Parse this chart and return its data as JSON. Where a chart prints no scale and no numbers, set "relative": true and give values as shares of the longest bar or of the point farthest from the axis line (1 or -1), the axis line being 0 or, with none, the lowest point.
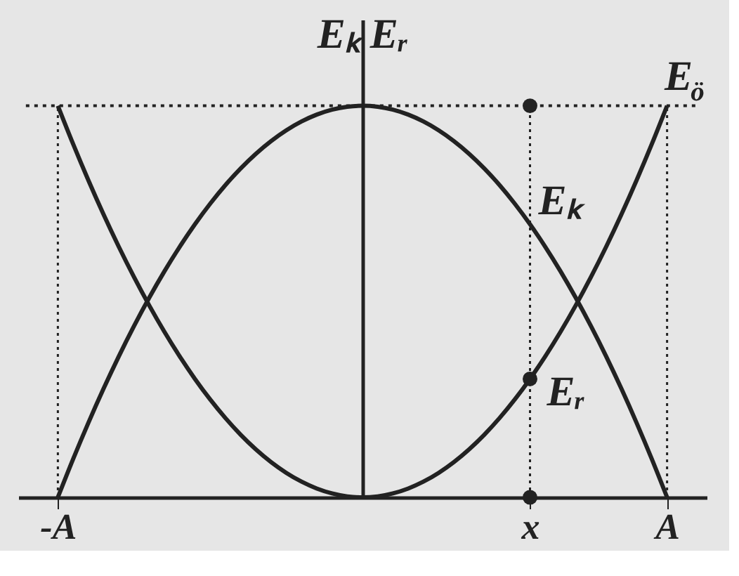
{
  "chart_data": {
    "type": "line",
    "relative": true,
    "ylabel": "Eₖ Eᵣ",
    "categories": [
      "-A",
      null,
      null,
      null,
      null,
      null,
      null,
      null,
      null,
      null,
      null,
      null,
      null,
      null,
      null,
      null,
      null,
      null,
      null,
      null,
      null,
      null,
      null,
      null,
      null,
      null,
      null,
      null,
      null,
      null,
      null,
      "x",
      null,
      null,
      null,
      null,
      null,
      null,
      null,
      null,
      "A"
    ],
    "series": [
      {
        "name": "Eₖ",
        "color": "#222222",
        "values": [
          0,
          0.0975,
          0.19,
          0.2775,
          0.36,
          0.4375,
          0.51,
          0.5775,
          0.64,
          0.6975,
          0.75,
          0.7975,
          0.84,
          0.8775,
          0.91,
          0.9375,
          0.96,
          0.9775,
          0.99,
          0.9975,
          1,
          0.9975,
          0.99,
          0.9775,
          0.96,
          0.9375,
          0.91,
          0.8775,
          0.84,
          0.7975,
          0.75,
          0.6975,
          0.64,
          0.5775,
          0.51,
          0.4375,
          0.36,
          0.2775,
          0.19,
          0.0975,
          0
        ]
      },
      {
        "name": "Eᵣ",
        "color": "#222222",
        "values": [
          1,
          0.9025,
          0.81,
          0.7225,
          0.64,
          0.5625,
          0.49,
          0.4225,
          0.36,
          0.3025,
          0.25,
          0.2025,
          0.16,
          0.1225,
          0.09,
          0.0625,
          0.04,
          0.0225,
          0.01,
          0.0025,
          0,
          0.0025,
          0.01,
          0.0225,
          0.04,
          0.0625,
          0.09,
          0.1225,
          0.16,
          0.2025,
          0.25,
          0.3025,
          0.36,
          0.4225,
          0.49,
          0.5625,
          0.64,
          0.7225,
          0.81,
          0.9025,
          1
        ]
      },
      {
        "type": "scatter",
        "marker": "circle",
        "color": "#222222",
        "x": [
          "x",
          "x",
          "x"
        ],
        "values": [
          1,
          0.3025,
          0
        ]
      }
    ],
    "ref_lines": [
      {
        "axis": "y",
        "value": 1,
        "line_style": "dotted"
      },
      {
        "axis": "x",
        "value": "-A",
        "line_style": "dotted"
      },
      {
        "axis": "x",
        "value": "A",
        "line_style": "dotted"
      },
      {
        "axis": "x",
        "value": "x",
        "line_style": "dotted"
      }
    ],
    "annotations": [
      "E$_{ö}$"
    ],
    "marker": "none",
    "line_style": "solid",
    "grid": false,
    "legend": false
  }
}
